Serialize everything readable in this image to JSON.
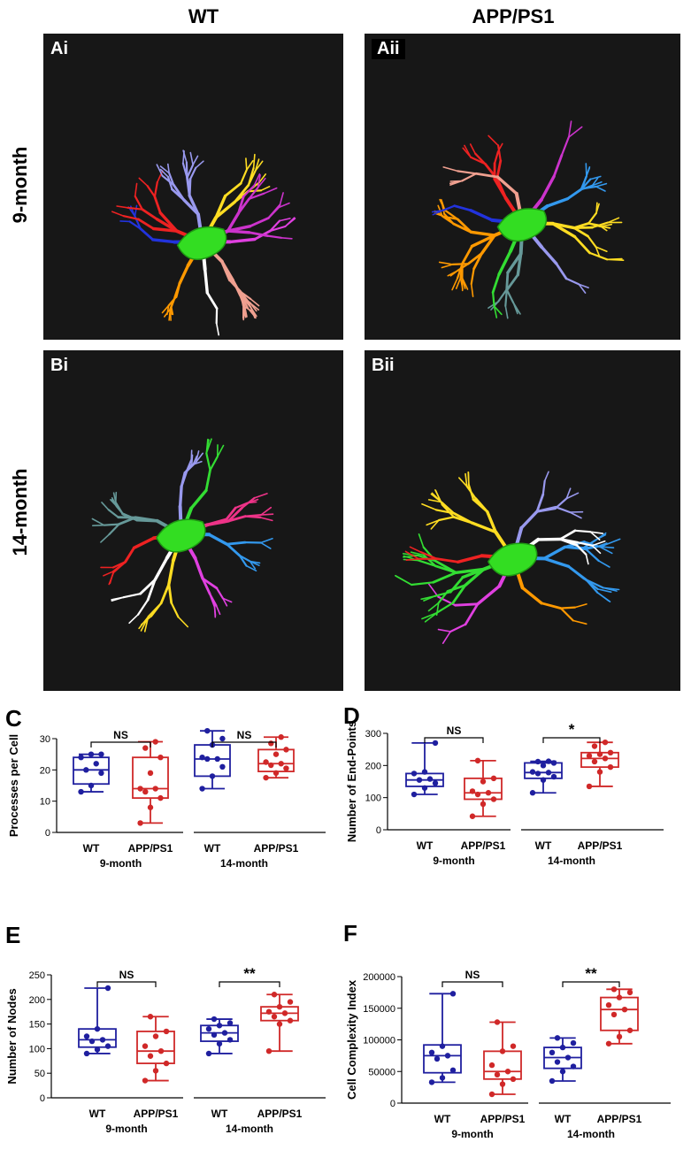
{
  "columns": {
    "left": "WT",
    "right": "APP/PS1"
  },
  "rows": {
    "top": "9-month",
    "bottom": "14-month"
  },
  "image_panels": [
    {
      "id": "Ai",
      "label": "Ai",
      "soma_color": "#33dd22",
      "branch_colors": [
        "#e040e0",
        "#f0a090",
        "#ffffff",
        "#ff9900",
        "#2233dd",
        "#ee2222",
        "#9999ee",
        "#ffdd22",
        "#cc33cc"
      ]
    },
    {
      "id": "Aii",
      "label": "Aii",
      "soma_color": "#33dd22",
      "branch_colors": [
        "#ffdd22",
        "#9999ee",
        "#669999",
        "#33dd33",
        "#ff9900",
        "#2233dd",
        "#ee2222",
        "#f0a090",
        "#cc33cc",
        "#3399ee"
      ]
    },
    {
      "id": "Bi",
      "label": "Bi",
      "soma_color": "#33dd22",
      "branch_colors": [
        "#3399ee",
        "#e040e0",
        "#ffdd22",
        "#ffffff",
        "#ee2222",
        "#669999",
        "#9999ee",
        "#33dd33",
        "#ee3388"
      ]
    },
    {
      "id": "Bii",
      "label": "Bii",
      "soma_color": "#33dd22",
      "branch_colors": [
        "#3399ee",
        "#ff9900",
        "#e040e0",
        "#33dd33",
        "#ee2222",
        "#ffdd22",
        "#9999ee",
        "#ffffff"
      ]
    }
  ],
  "chart_data": [
    {
      "panel": "C",
      "type": "box",
      "ylabel": "Processes per Cell",
      "ylim": [
        0,
        30
      ],
      "yticks": [
        0,
        10,
        20,
        30
      ],
      "groups": [
        {
          "label": "WT",
          "color": "#1f1f9f",
          "min": 13,
          "q1": 15.5,
          "median": 20,
          "q3": 24,
          "max": 25,
          "points": [
            13,
            15,
            19,
            20,
            22,
            24,
            25,
            25
          ]
        },
        {
          "label": "APP/PS1",
          "color": "#d02828",
          "min": 3,
          "q1": 11,
          "median": 14,
          "q3": 24,
          "max": 29,
          "points": [
            3,
            8,
            11,
            13,
            14,
            14,
            19,
            24,
            27,
            29
          ]
        },
        {
          "label": "WT",
          "color": "#1f1f9f",
          "min": 14,
          "q1": 18,
          "median": 23.5,
          "q3": 28,
          "max": 32.5,
          "points": [
            14,
            18,
            21,
            23.5,
            23.5,
            24,
            28,
            30,
            32.5
          ]
        },
        {
          "label": "APP/PS1",
          "color": "#d02828",
          "min": 17.5,
          "q1": 19.5,
          "median": 22,
          "q3": 26.5,
          "max": 30.5,
          "points": [
            17.5,
            19,
            20.5,
            21.5,
            22,
            22.5,
            25,
            26.5,
            28.5,
            30.5
          ]
        }
      ],
      "timepoints": [
        "9-month",
        "14-month"
      ],
      "comparisons": [
        {
          "text": "NS"
        },
        {
          "text": "NS"
        }
      ]
    },
    {
      "panel": "D",
      "type": "box",
      "ylabel": "Number of End-Points",
      "ylim": [
        0,
        300
      ],
      "yticks": [
        0,
        100,
        200,
        300
      ],
      "groups": [
        {
          "label": "WT",
          "color": "#1f1f9f",
          "min": 110,
          "q1": 135,
          "median": 155,
          "q3": 175,
          "max": 270,
          "points": [
            110,
            130,
            145,
            155,
            158,
            175,
            180,
            270
          ]
        },
        {
          "label": "APP/PS1",
          "color": "#d02828",
          "min": 42,
          "q1": 95,
          "median": 115,
          "q3": 160,
          "max": 215,
          "points": [
            42,
            80,
            95,
            110,
            115,
            120,
            150,
            160,
            215
          ]
        },
        {
          "label": "WT",
          "color": "#1f1f9f",
          "min": 115,
          "q1": 160,
          "median": 178,
          "q3": 208,
          "max": 213,
          "points": [
            115,
            155,
            165,
            175,
            178,
            180,
            200,
            208,
            212,
            213
          ]
        },
        {
          "label": "APP/PS1",
          "color": "#d02828",
          "min": 135,
          "q1": 195,
          "median": 222,
          "q3": 240,
          "max": 272,
          "points": [
            135,
            180,
            195,
            212,
            222,
            230,
            235,
            240,
            260,
            272
          ]
        }
      ],
      "timepoints": [
        "9-month",
        "14-month"
      ],
      "comparisons": [
        {
          "text": "NS"
        },
        {
          "text": "*"
        }
      ]
    },
    {
      "panel": "E",
      "type": "box",
      "ylabel": "Number of Nodes",
      "ylim": [
        0,
        250
      ],
      "yticks": [
        0,
        50,
        100,
        150,
        200,
        250
      ],
      "groups": [
        {
          "label": "WT",
          "color": "#1f1f9f",
          "min": 90,
          "q1": 103,
          "median": 118,
          "q3": 140,
          "max": 223,
          "points": [
            90,
            98,
            105,
            115,
            118,
            125,
            140,
            223
          ]
        },
        {
          "label": "APP/PS1",
          "color": "#d02828",
          "min": 35,
          "q1": 70,
          "median": 95,
          "q3": 135,
          "max": 165,
          "points": [
            35,
            55,
            70,
            85,
            95,
            105,
            125,
            135,
            165
          ]
        },
        {
          "label": "WT",
          "color": "#1f1f9f",
          "min": 90,
          "q1": 115,
          "median": 132,
          "q3": 147,
          "max": 160,
          "points": [
            90,
            110,
            118,
            128,
            132,
            140,
            147,
            152,
            160
          ]
        },
        {
          "label": "APP/PS1",
          "color": "#d02828",
          "min": 95,
          "q1": 157,
          "median": 172,
          "q3": 185,
          "max": 210,
          "points": [
            95,
            150,
            157,
            165,
            172,
            175,
            185,
            195,
            210
          ]
        }
      ],
      "timepoints": [
        "9-month",
        "14-month"
      ],
      "comparisons": [
        {
          "text": "NS"
        },
        {
          "text": "**"
        }
      ]
    },
    {
      "panel": "F",
      "type": "box",
      "ylabel": "Cell Complexity Index",
      "ylim": [
        0,
        200000
      ],
      "yticks": [
        0,
        50000,
        100000,
        150000,
        200000
      ],
      "groups": [
        {
          "label": "WT",
          "color": "#1f1f9f",
          "min": 33000,
          "q1": 48000,
          "median": 75000,
          "q3": 92000,
          "max": 173000,
          "points": [
            33000,
            40000,
            52000,
            70000,
            75000,
            80000,
            90000,
            173000
          ]
        },
        {
          "label": "APP/PS1",
          "color": "#d02828",
          "min": 14000,
          "q1": 38000,
          "median": 50000,
          "q3": 82000,
          "max": 128000,
          "points": [
            14000,
            30000,
            38000,
            45000,
            50000,
            60000,
            82000,
            90000,
            128000
          ]
        },
        {
          "label": "WT",
          "color": "#1f1f9f",
          "min": 35000,
          "q1": 55000,
          "median": 72000,
          "q3": 88000,
          "max": 103000,
          "points": [
            35000,
            50000,
            58000,
            65000,
            72000,
            80000,
            88000,
            95000,
            103000
          ]
        },
        {
          "label": "APP/PS1",
          "color": "#d02828",
          "min": 94000,
          "q1": 115000,
          "median": 148000,
          "q3": 167000,
          "max": 180000,
          "points": [
            94000,
            105000,
            115000,
            140000,
            148000,
            155000,
            167000,
            175000,
            180000
          ]
        }
      ],
      "timepoints": [
        "9-month",
        "14-month"
      ],
      "comparisons": [
        {
          "text": "NS"
        },
        {
          "text": "**"
        }
      ]
    }
  ]
}
